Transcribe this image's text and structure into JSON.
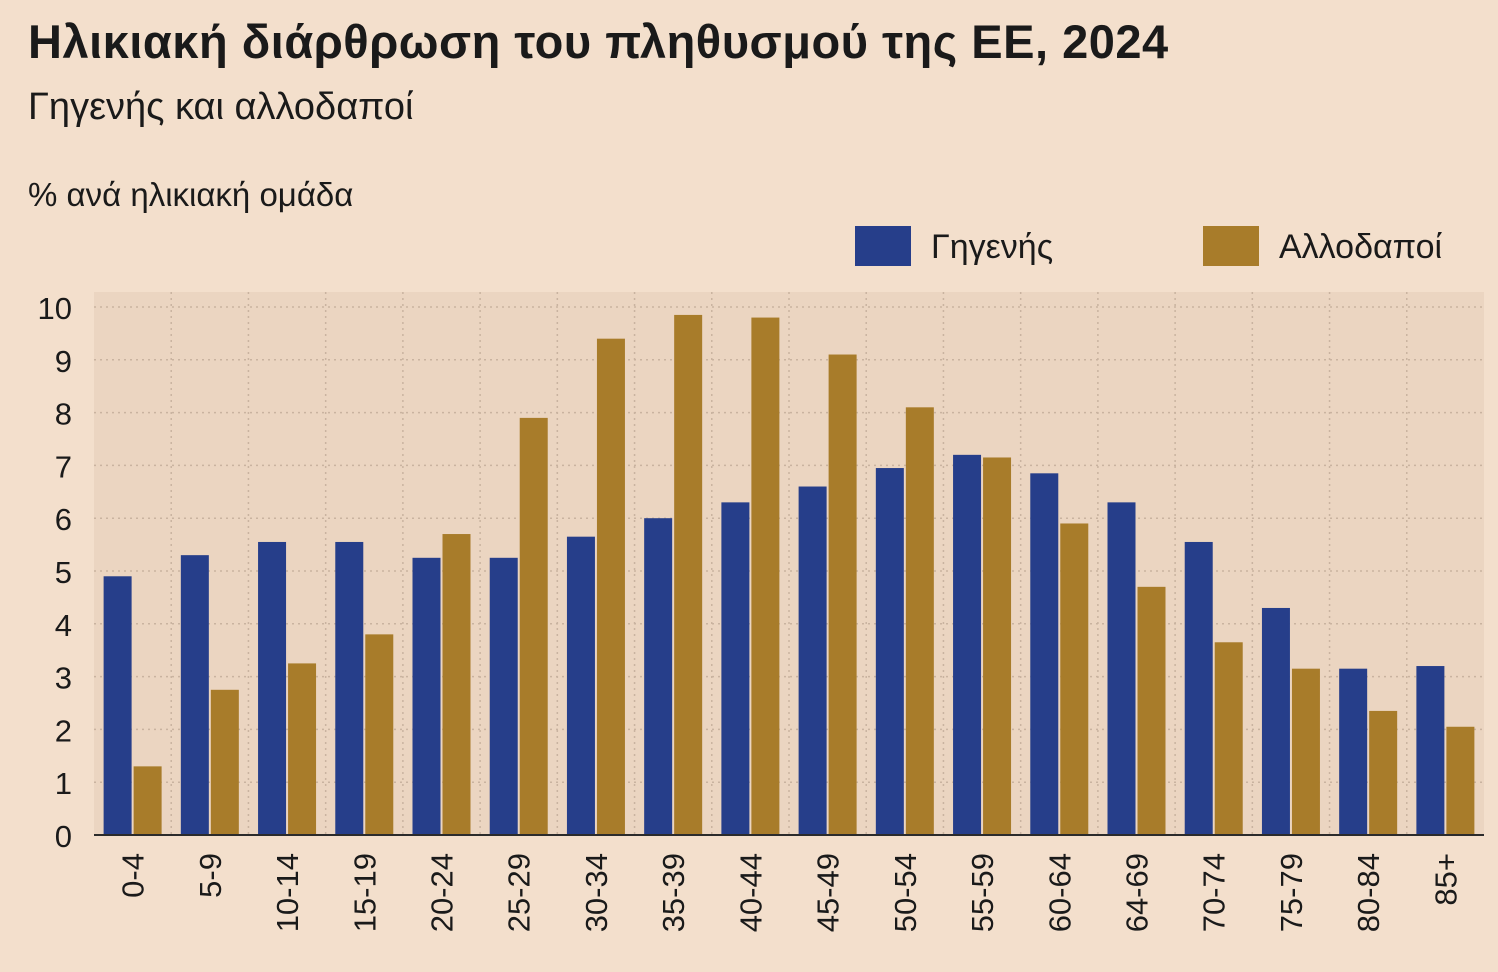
{
  "chart_data": {
    "type": "bar",
    "title": "Ηλικιακή διάρθρωση του πληθυσμού της ΕΕ, 2024",
    "subtitle": "Γηγενής και αλλοδαποί",
    "ylabel": "% ανά ηλικιακή ομάδα",
    "xlabel": "",
    "ylim": [
      0,
      10
    ],
    "yticks": [
      "0",
      "1",
      "2",
      "3",
      "4",
      "5",
      "6",
      "7",
      "8",
      "9",
      "10"
    ],
    "grid": true,
    "legend_position": "top-right",
    "categories": [
      "0-4",
      "5-9",
      "10-14",
      "15-19",
      "20-24",
      "25-29",
      "30-34",
      "35-39",
      "40-44",
      "45-49",
      "50-54",
      "55-59",
      "60-64",
      "64-69",
      "70-74",
      "75-79",
      "80-84",
      "85+"
    ],
    "series": [
      {
        "name": "Γηγενής",
        "color": "#263e8a",
        "values": [
          4.9,
          5.3,
          5.55,
          5.55,
          5.25,
          5.25,
          5.65,
          6.0,
          6.3,
          6.6,
          6.95,
          7.2,
          6.85,
          6.3,
          5.55,
          4.3,
          3.15,
          3.2
        ]
      },
      {
        "name": "Αλλοδαποί",
        "color": "#a87c2a",
        "values": [
          1.3,
          2.75,
          3.25,
          3.8,
          5.7,
          7.9,
          9.4,
          9.85,
          9.8,
          9.1,
          8.1,
          7.15,
          5.9,
          4.7,
          3.65,
          3.15,
          2.35,
          2.05
        ]
      }
    ]
  }
}
